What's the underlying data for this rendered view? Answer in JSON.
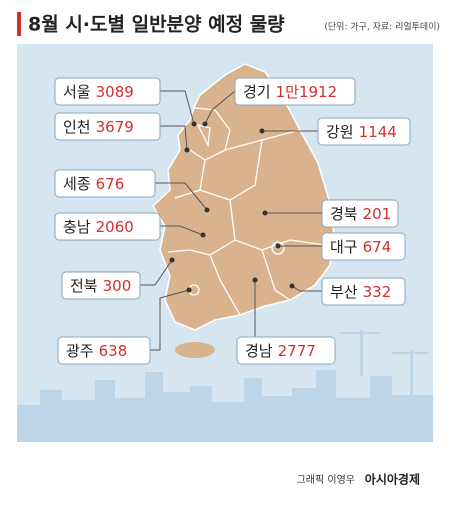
{
  "header": {
    "title": "8월 시·도별 일반분양 예정 물량",
    "note": "(단위: 가구, 자료: 리얼투데이)"
  },
  "regions": [
    {
      "name": "서울",
      "value": 3089
    },
    {
      "name": "인천",
      "value": 3679
    },
    {
      "name": "경기",
      "value": 11912,
      "value_label": "1만1912"
    },
    {
      "name": "강원",
      "value": 1144
    },
    {
      "name": "세종",
      "value": 676
    },
    {
      "name": "충남",
      "value": 2060
    },
    {
      "name": "경북",
      "value": 201
    },
    {
      "name": "대구",
      "value": 674
    },
    {
      "name": "전북",
      "value": 300
    },
    {
      "name": "부산",
      "value": 332
    },
    {
      "name": "광주",
      "value": 638
    },
    {
      "name": "경남",
      "value": 2777
    }
  ],
  "credit": {
    "graphic": "그래픽 이영우",
    "brand": "아시아경제"
  }
}
